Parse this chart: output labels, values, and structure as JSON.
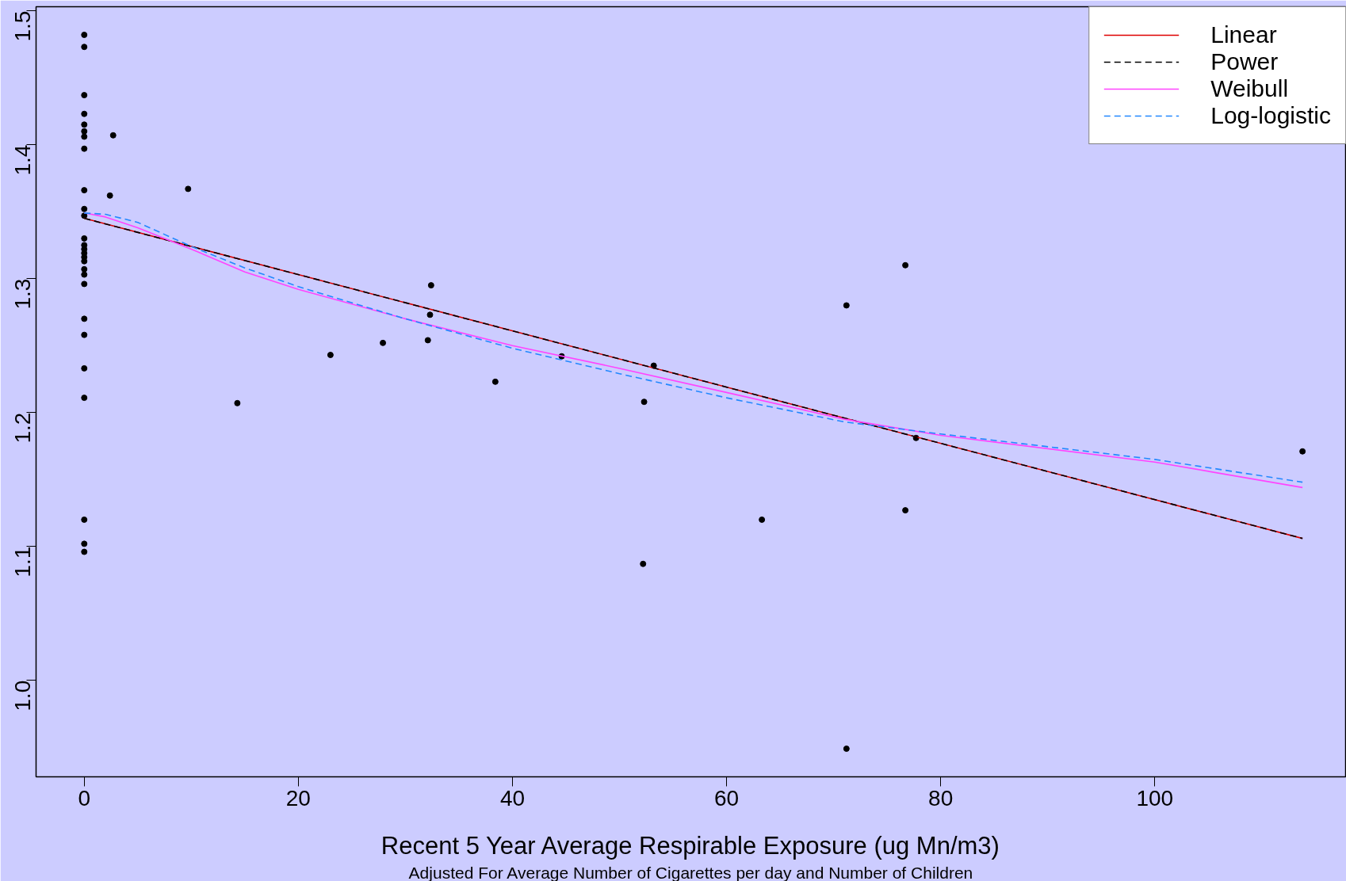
{
  "chart_data": {
    "type": "scatter",
    "xlabel": "Recent 5 Year Average Respirable Exposure (ug Mn/m3)",
    "annotations": [
      "Adjusted For Average Number of Cigarettes per day and Number of Children"
    ],
    "xlim": [
      -4.5,
      117.9
    ],
    "xticks": [
      0,
      20,
      40,
      60,
      80,
      100
    ],
    "ylim": [
      0.928,
      1.503
    ],
    "yticks": [
      {
        "value": 1.0,
        "label": "1.0"
      },
      1.1,
      1.2,
      1.3,
      1.4,
      1.5
    ],
    "grid": false,
    "legend": "top right",
    "series": [
      {
        "marker": "circle",
        "color": "#000000",
        "x": [
          0,
          0,
          0,
          0,
          0,
          0,
          0,
          0,
          0,
          0,
          0,
          0,
          0,
          0,
          0,
          0,
          0,
          0,
          0,
          0,
          0,
          0,
          0,
          0,
          0,
          0,
          0,
          2.7,
          2.4,
          9.7,
          14.3,
          23.0,
          27.9,
          32.1,
          32.4,
          32.3,
          38.4,
          44.6,
          53.2,
          52.3,
          52.2,
          63.3,
          71.2,
          71.2,
          76.7,
          76.7,
          77.7,
          113.8
        ],
        "values": [
          1.482,
          1.473,
          1.437,
          1.423,
          1.415,
          1.41,
          1.406,
          1.397,
          1.366,
          1.352,
          1.347,
          1.33,
          1.325,
          1.322,
          1.319,
          1.316,
          1.313,
          1.307,
          1.303,
          1.296,
          1.27,
          1.258,
          1.233,
          1.211,
          1.12,
          1.102,
          1.096,
          1.407,
          1.362,
          1.367,
          1.207,
          1.243,
          1.252,
          1.254,
          1.295,
          1.273,
          1.223,
          1.242,
          1.235,
          1.208,
          1.087,
          1.12,
          1.28,
          0.949,
          1.31,
          1.127,
          1.181,
          1.171
        ]
      },
      {
        "type": "line",
        "name": "Linear",
        "color": "#dd0000",
        "line_style": "solid",
        "x": [
          0,
          113.8
        ],
        "values": [
          1.345,
          1.106
        ]
      },
      {
        "type": "line",
        "name": "Power",
        "color": "#000000",
        "line_style": "dashed",
        "x": [
          0,
          113.8
        ],
        "values": [
          1.345,
          1.106
        ]
      },
      {
        "type": "line",
        "name": "Weibull",
        "color": "#ff44ff",
        "line_style": "solid",
        "x": [
          0,
          2,
          5,
          10,
          15,
          20,
          30,
          40,
          50,
          60,
          71,
          80,
          100,
          113.8
        ],
        "values": [
          1.349,
          1.346,
          1.338,
          1.322,
          1.305,
          1.292,
          1.27,
          1.25,
          1.233,
          1.215,
          1.195,
          1.183,
          1.163,
          1.144
        ]
      },
      {
        "type": "line",
        "name": "Log-logistic",
        "color": "#2288ff",
        "line_style": "dashed",
        "x": [
          0,
          2,
          5,
          10,
          15,
          20,
          30,
          40,
          50,
          60,
          71,
          80,
          100,
          113.8
        ],
        "values": [
          1.349,
          1.348,
          1.342,
          1.324,
          1.308,
          1.294,
          1.27,
          1.248,
          1.229,
          1.211,
          1.193,
          1.184,
          1.165,
          1.148
        ]
      }
    ]
  }
}
